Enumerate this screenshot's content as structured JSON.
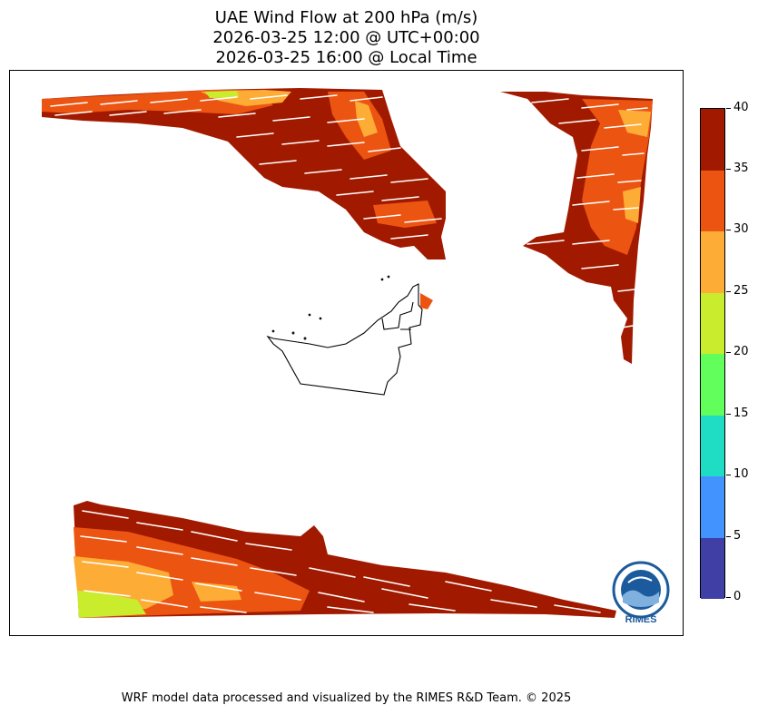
{
  "header": {
    "title_line1": "UAE Wind Flow at 200 hPa (m/s)",
    "title_line2": "2026-03-25 12:00 @ UTC+00:00",
    "title_line3": "2026-03-25 16:00 @ Local Time"
  },
  "colorbar": {
    "min": 0,
    "max": 40,
    "levels": [
      {
        "label": "0",
        "value": 0
      },
      {
        "label": "5",
        "value": 5
      },
      {
        "label": "10",
        "value": 10
      },
      {
        "label": "15",
        "value": 15
      },
      {
        "label": "20",
        "value": 20
      },
      {
        "label": "25",
        "value": 25
      },
      {
        "label": "30",
        "value": 30
      },
      {
        "label": "35",
        "value": 35
      },
      {
        "label": "40",
        "value": 40
      }
    ],
    "colors": [
      "#3f3fa6",
      "#4393ff",
      "#1fdcc4",
      "#62ff5c",
      "#c9ec2d",
      "#fdac35",
      "#ec5412",
      "#a11a00"
    ]
  },
  "logo": {
    "text": "RIMES",
    "color": "#1b5a9c"
  },
  "footer": {
    "credit": "WRF model data processed and visualized by the RIMES R&D Team. © 2025"
  }
}
